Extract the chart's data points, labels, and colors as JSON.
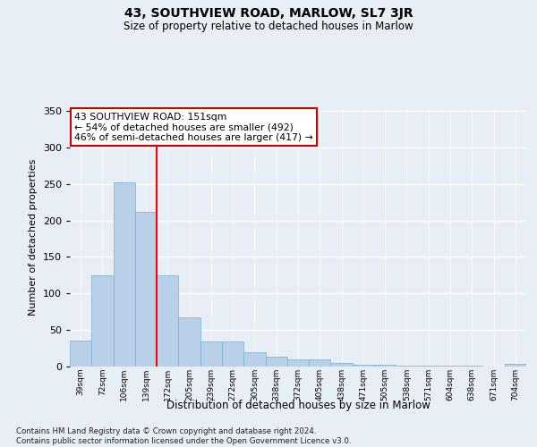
{
  "title": "43, SOUTHVIEW ROAD, MARLOW, SL7 3JR",
  "subtitle": "Size of property relative to detached houses in Marlow",
  "xlabel": "Distribution of detached houses by size in Marlow",
  "ylabel": "Number of detached properties",
  "categories": [
    "39sqm",
    "72sqm",
    "106sqm",
    "139sqm",
    "172sqm",
    "205sqm",
    "239sqm",
    "272sqm",
    "305sqm",
    "338sqm",
    "372sqm",
    "405sqm",
    "438sqm",
    "471sqm",
    "505sqm",
    "538sqm",
    "571sqm",
    "604sqm",
    "638sqm",
    "671sqm",
    "704sqm"
  ],
  "values": [
    36,
    125,
    252,
    212,
    125,
    67,
    34,
    34,
    19,
    14,
    10,
    10,
    5,
    2,
    2,
    1,
    1,
    1,
    1,
    0,
    4
  ],
  "bar_color": "#b8d0e8",
  "bar_edge_color": "#7aaed4",
  "red_line_x": 3.5,
  "annotation_text": "43 SOUTHVIEW ROAD: 151sqm\n← 54% of detached houses are smaller (492)\n46% of semi-detached houses are larger (417) →",
  "annotation_box_color": "#ffffff",
  "annotation_box_edge": "#cc0000",
  "ylim": [
    0,
    355
  ],
  "yticks": [
    0,
    50,
    100,
    150,
    200,
    250,
    300,
    350
  ],
  "bg_color": "#e8eef5",
  "grid_color": "#ffffff",
  "footer": "Contains HM Land Registry data © Crown copyright and database right 2024.\nContains public sector information licensed under the Open Government Licence v3.0."
}
